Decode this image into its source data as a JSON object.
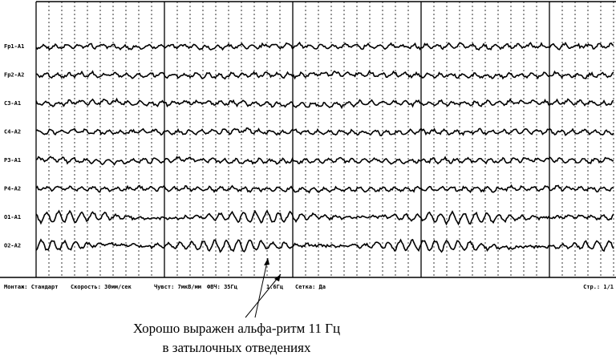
{
  "channels": [
    "Fp1-A1",
    "Fp2-A2",
    "C3-A1",
    "C4-A2",
    "P3-A1",
    "P4-A2",
    "O1-A1",
    "O2-A2"
  ],
  "status_bar": {
    "fields": [
      "Монтаж: Стандарт",
      "Скорость: 30мм/сек",
      "Чувст: 7мкВ/мм",
      "ФВЧ: 35Гц",
      "1.6Гц",
      "Сетка: Да"
    ],
    "page": "Стр.: 1/1"
  },
  "caption": {
    "line1": "Хорошо выражен альфа-ритм 11 Гц",
    "line2": "в затылочных отведениях"
  }
}
